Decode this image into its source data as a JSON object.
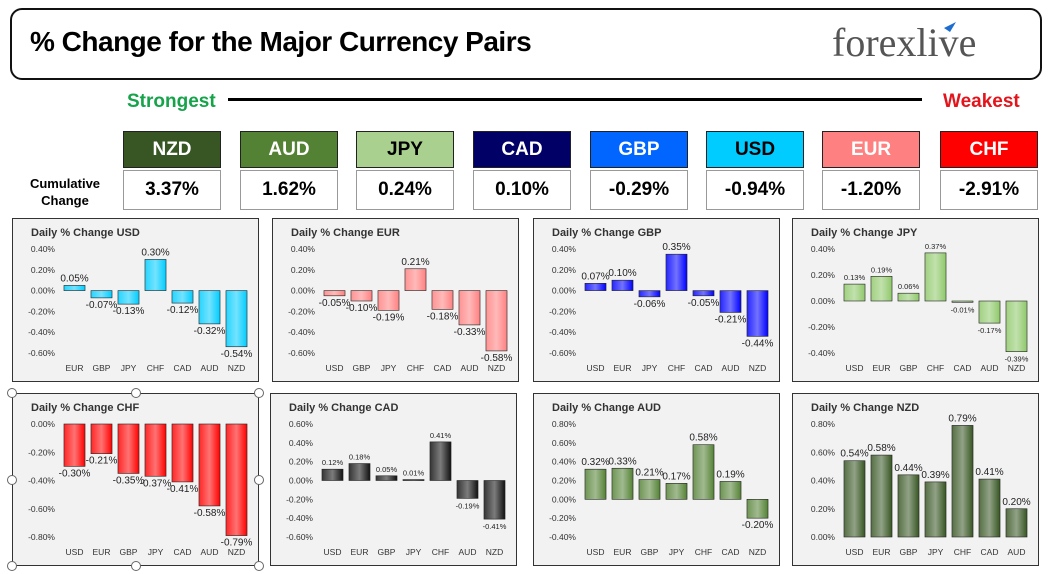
{
  "header": {
    "title": "% Change for the Major Currency Pairs",
    "logo": "forexlive"
  },
  "ranking": {
    "strongest_label": "Strongest",
    "weakest_label": "Weakest",
    "cumulative_label": "Cumulative Change",
    "currencies": [
      {
        "code": "NZD",
        "value": "3.37%",
        "color": "#375623",
        "text_color": "#ffffff"
      },
      {
        "code": "AUD",
        "value": "1.62%",
        "color": "#548235",
        "text_color": "#ffffff"
      },
      {
        "code": "JPY",
        "value": "0.24%",
        "color": "#a9d08e",
        "text_color": "#000000"
      },
      {
        "code": "CAD",
        "value": "0.10%",
        "color": "#000066",
        "text_color": "#ffffff"
      },
      {
        "code": "GBP",
        "value": "-0.29%",
        "color": "#0066ff",
        "text_color": "#ffffff"
      },
      {
        "code": "USD",
        "value": "-0.94%",
        "color": "#00ccff",
        "text_color": "#000000"
      },
      {
        "code": "EUR",
        "value": "-1.20%",
        "color": "#ff8080",
        "text_color": "#ffffff"
      },
      {
        "code": "CHF",
        "value": "-2.91%",
        "color": "#ff0000",
        "text_color": "#ffffff"
      }
    ]
  },
  "chart_data": [
    {
      "type": "bar",
      "title": "Daily % Change USD",
      "categories": [
        "EUR",
        "GBP",
        "JPY",
        "CHF",
        "CAD",
        "AUD",
        "NZD"
      ],
      "values": [
        0.05,
        -0.07,
        -0.13,
        0.3,
        -0.12,
        -0.32,
        -0.54
      ],
      "labels": [
        "0.05%",
        "-0.07%",
        "-0.13%",
        "0.30%",
        "-0.12%",
        "-0.32%",
        "-0.54%"
      ],
      "ylim": [
        -0.6,
        0.4
      ],
      "ticks": [
        0.4,
        0.2,
        0.0,
        -0.2,
        -0.4,
        -0.6
      ],
      "tick_labels": [
        "0.40%",
        "0.20%",
        "0.00%",
        "-0.20%",
        "-0.40%",
        "-0.60%"
      ],
      "color": "#00ccff"
    },
    {
      "type": "bar",
      "title": "Daily % Change EUR",
      "categories": [
        "USD",
        "GBP",
        "JPY",
        "CHF",
        "CAD",
        "AUD",
        "NZD"
      ],
      "values": [
        -0.05,
        -0.1,
        -0.19,
        0.21,
        -0.18,
        -0.33,
        -0.58
      ],
      "labels": [
        "-0.05%",
        "-0.10%",
        "-0.19%",
        "0.21%",
        "-0.18%",
        "-0.33%",
        "-0.58%"
      ],
      "ylim": [
        -0.6,
        0.4
      ],
      "ticks": [
        0.4,
        0.2,
        0.0,
        -0.2,
        -0.4,
        -0.6
      ],
      "tick_labels": [
        "0.40%",
        "0.20%",
        "0.00%",
        "-0.20%",
        "-0.40%",
        "-0.60%"
      ],
      "color": "#ff8080"
    },
    {
      "type": "bar",
      "title": "Daily % Change GBP",
      "categories": [
        "USD",
        "EUR",
        "JPY",
        "CHF",
        "CAD",
        "AUD",
        "NZD"
      ],
      "values": [
        0.07,
        0.1,
        -0.06,
        0.35,
        -0.05,
        -0.21,
        -0.44
      ],
      "labels": [
        "0.07%",
        "0.10%",
        "-0.06%",
        "0.35%",
        "-0.05%",
        "-0.21%",
        "-0.44%"
      ],
      "ylim": [
        -0.6,
        0.4
      ],
      "ticks": [
        0.4,
        0.2,
        0.0,
        -0.2,
        -0.4,
        -0.6
      ],
      "tick_labels": [
        "0.40%",
        "0.20%",
        "0.00%",
        "-0.20%",
        "-0.40%",
        "-0.60%"
      ],
      "color": "#0000ff"
    },
    {
      "type": "bar",
      "title": "Daily % Change JPY",
      "categories": [
        "USD",
        "EUR",
        "GBP",
        "CHF",
        "CAD",
        "AUD",
        "NZD"
      ],
      "values": [
        0.13,
        0.19,
        0.06,
        0.37,
        -0.01,
        -0.17,
        -0.39
      ],
      "labels": [
        "0.13%",
        "0.19%",
        "0.06%",
        "0.37%",
        "-0.01%",
        "-0.17%",
        "-0.39%"
      ],
      "ylim": [
        -0.4,
        0.4
      ],
      "ticks": [
        0.4,
        0.2,
        0.0,
        -0.2,
        -0.4
      ],
      "tick_labels": [
        "0.40%",
        "0.20%",
        "0.00%",
        "-0.20%",
        "-0.40%"
      ],
      "color": "#8fc86a"
    },
    {
      "type": "bar",
      "title": "Daily % Change CHF",
      "categories": [
        "USD",
        "EUR",
        "GBP",
        "JPY",
        "CAD",
        "AUD",
        "NZD"
      ],
      "values": [
        -0.3,
        -0.21,
        -0.35,
        -0.37,
        -0.41,
        -0.58,
        -0.79
      ],
      "labels": [
        "-0.30%",
        "-0.21%",
        "-0.35%",
        "-0.37%",
        "-0.41%",
        "-0.58%",
        "-0.79%"
      ],
      "ylim": [
        -0.8,
        0.0
      ],
      "ticks": [
        0.0,
        -0.2,
        -0.4,
        -0.6,
        -0.8
      ],
      "tick_labels": [
        "0.00%",
        "-0.20%",
        "-0.40%",
        "-0.60%",
        "-0.80%"
      ],
      "color": "#ff0000"
    },
    {
      "type": "bar",
      "title": "Daily % Change CAD",
      "categories": [
        "USD",
        "EUR",
        "GBP",
        "JPY",
        "CHF",
        "AUD",
        "NZD"
      ],
      "values": [
        0.12,
        0.18,
        0.05,
        0.01,
        0.41,
        -0.19,
        -0.41
      ],
      "labels": [
        "0.12%",
        "0.18%",
        "0.05%",
        "0.01%",
        "0.41%",
        "-0.19%",
        "-0.41%"
      ],
      "ylim": [
        -0.6,
        0.6
      ],
      "ticks": [
        0.6,
        0.4,
        0.2,
        0.0,
        -0.2,
        -0.4,
        -0.6
      ],
      "tick_labels": [
        "0.60%",
        "0.40%",
        "0.20%",
        "0.00%",
        "-0.20%",
        "-0.40%",
        "-0.60%"
      ],
      "color": "#111111"
    },
    {
      "type": "bar",
      "title": "Daily % Change AUD",
      "categories": [
        "USD",
        "EUR",
        "GBP",
        "JPY",
        "CHF",
        "CAD",
        "NZD"
      ],
      "values": [
        0.32,
        0.33,
        0.21,
        0.17,
        0.58,
        0.19,
        -0.2
      ],
      "labels": [
        "0.32%",
        "0.33%",
        "0.21%",
        "0.17%",
        "0.58%",
        "0.19%",
        "-0.20%"
      ],
      "ylim": [
        -0.4,
        0.8
      ],
      "ticks": [
        0.8,
        0.6,
        0.4,
        0.2,
        0.0,
        -0.2,
        -0.4
      ],
      "tick_labels": [
        "0.80%",
        "0.60%",
        "0.40%",
        "0.20%",
        "0.00%",
        "-0.20%",
        "-0.40%"
      ],
      "color": "#548235"
    },
    {
      "type": "bar",
      "title": "Daily % Change NZD",
      "categories": [
        "USD",
        "EUR",
        "GBP",
        "JPY",
        "CHF",
        "CAD",
        "AUD"
      ],
      "values": [
        0.54,
        0.58,
        0.44,
        0.39,
        0.79,
        0.41,
        0.2
      ],
      "labels": [
        "0.54%",
        "0.58%",
        "0.44%",
        "0.39%",
        "0.79%",
        "0.41%",
        "0.20%"
      ],
      "ylim": [
        0.0,
        0.8
      ],
      "ticks": [
        0.8,
        0.6,
        0.4,
        0.2,
        0.0
      ],
      "tick_labels": [
        "0.80%",
        "0.60%",
        "0.40%",
        "0.20%",
        "0.00%"
      ],
      "color": "#375623"
    }
  ]
}
